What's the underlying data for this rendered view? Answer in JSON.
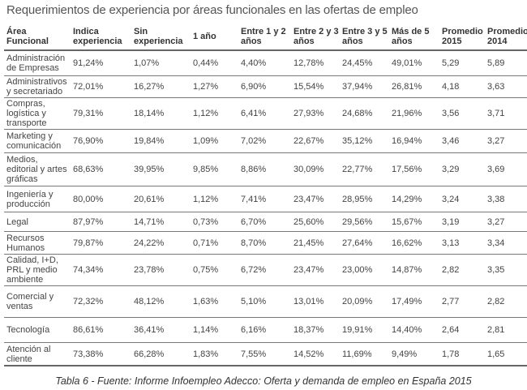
{
  "title": "Requerimientos de experiencia por áreas funcionales en las ofertas de empleo",
  "table": {
    "headers": [
      "Área Funcional",
      "Indica experiencia",
      "Sin experiencia",
      "1 año",
      "Entre 1 y 2 años",
      "Entre 2 y 3 años",
      "Entre 3 y 5 años",
      "Más de 5 años",
      "Promedio 2015",
      "Promedio 2014"
    ],
    "rows": [
      [
        "Administración de Empresas",
        "91,24%",
        "1,07%",
        "0,44%",
        "4,40%",
        "12,78%",
        "24,45%",
        "49,01%",
        "5,29",
        "5,89"
      ],
      [
        "Administrativos y secretariado",
        "72,01%",
        "16,27%",
        "1,27%",
        "6,90%",
        "15,54%",
        "37,94%",
        "26,81%",
        "4,18",
        "3,63"
      ],
      [
        "Compras, logística y transporte",
        "79,31%",
        "18,14%",
        "1,12%",
        "6,41%",
        "27,93%",
        "24,68%",
        "21,96%",
        "3,56",
        "3,71"
      ],
      [
        "Marketing y comunicación",
        "76,90%",
        "19,84%",
        "1,09%",
        "7,02%",
        "22,67%",
        "35,12%",
        "16,94%",
        "3,46",
        "3,27"
      ],
      [
        "Medios, editorial y artes gráficas",
        "68,63%",
        "39,95%",
        "9,85%",
        "8,86%",
        "30,09%",
        "22,77%",
        "17,56%",
        "3,29",
        "3,69"
      ],
      [
        "Ingeniería y producción",
        "80,00%",
        "20,61%",
        "1,12%",
        "7,41%",
        "23,47%",
        "28,95%",
        "14,29%",
        "3,24",
        "3,38"
      ],
      [
        "Legal",
        "87,97%",
        "14,71%",
        "0,73%",
        "6,70%",
        "25,60%",
        "29,56%",
        "15,67%",
        "3,19",
        "3,27"
      ],
      [
        "Recursos Humanos",
        "79,87%",
        "24,22%",
        "0,71%",
        "8,70%",
        "21,45%",
        "27,64%",
        "16,62%",
        "3,13",
        "3,34"
      ],
      [
        "Calidad, I+D, PRL y medio ambiente",
        "74,34%",
        "23,78%",
        "0,75%",
        "6,72%",
        "23,47%",
        "23,00%",
        "14,87%",
        "2,82",
        "3,35"
      ],
      [
        "Comercial y ventas",
        "72,32%",
        "48,12%",
        "1,63%",
        "5,10%",
        "13,01%",
        "20,09%",
        "17,49%",
        "2,77",
        "2,82"
      ],
      [
        "Tecnología",
        "86,61%",
        "36,41%",
        "1,14%",
        "6,16%",
        "18,37%",
        "19,91%",
        "14,40%",
        "2,64",
        "2,81"
      ],
      [
        "Atención al cliente",
        "73,38%",
        "66,28%",
        "1,83%",
        "7,55%",
        "14,52%",
        "11,69%",
        "9,49%",
        "1,78",
        "1,65"
      ]
    ]
  },
  "caption": "Tabla  6 - Fuente: Informe Infoempleo Adecco: Oferta y demanda de empleo en España 2015"
}
